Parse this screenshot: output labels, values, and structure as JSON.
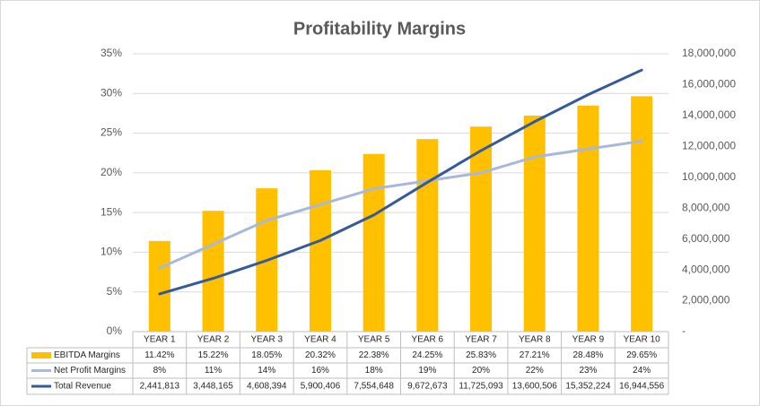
{
  "chart_data": {
    "type": "bar",
    "title": "Profitability Margins",
    "categories": [
      "YEAR 1",
      "YEAR 2",
      "YEAR 3",
      "YEAR 4",
      "YEAR 5",
      "YEAR 6",
      "YEAR 7",
      "YEAR 8",
      "YEAR 9",
      "YEAR 10"
    ],
    "series": [
      {
        "name": "EBITDA Margins",
        "type": "bar",
        "color": "#ffc000",
        "values": [
          11.42,
          15.22,
          18.05,
          20.32,
          22.38,
          24.25,
          25.83,
          27.21,
          28.48,
          29.65
        ],
        "value_labels": [
          "11.42%",
          "15.22%",
          "18.05%",
          "20.32%",
          "22.38%",
          "24.25%",
          "25.83%",
          "27.21%",
          "28.48%",
          "29.65%"
        ]
      },
      {
        "name": "Net Profit Margins",
        "type": "line",
        "color": "#a9b8d9",
        "values": [
          8,
          11,
          14,
          16,
          18,
          19,
          20,
          22,
          23,
          24
        ],
        "value_labels": [
          "8%",
          "11%",
          "14%",
          "16%",
          "18%",
          "19%",
          "20%",
          "22%",
          "23%",
          "24%"
        ]
      },
      {
        "name": "Total Revenue",
        "type": "line",
        "axis": "y2",
        "color": "#35599b",
        "values": [
          2441813,
          3448165,
          4608394,
          5900406,
          7554648,
          9672673,
          11725093,
          13600506,
          15352224,
          16944556
        ],
        "value_labels": [
          "2,441,813",
          "3,448,165",
          "4,608,394",
          "5,900,406",
          "7,554,648",
          "9,672,673",
          "11,725,093",
          "13,600,506",
          "15,352,224",
          "16,944,556"
        ]
      }
    ],
    "ylim": [
      0,
      35
    ],
    "yticks": [
      {
        "value": 0,
        "label": "0%"
      },
      {
        "value": 5,
        "label": "5%"
      },
      {
        "value": 10,
        "label": "10%"
      },
      {
        "value": 15,
        "label": "15%"
      },
      {
        "value": 20,
        "label": "20%"
      },
      {
        "value": 25,
        "label": "25%"
      },
      {
        "value": 30,
        "label": "30%"
      },
      {
        "value": 35,
        "label": "35%"
      }
    ],
    "y2lim": [
      0,
      18000000
    ],
    "y2ticks": [
      {
        "value": 0,
        "label": "-"
      },
      {
        "value": 2000000,
        "label": "2,000,000"
      },
      {
        "value": 4000000,
        "label": "4,000,000"
      },
      {
        "value": 6000000,
        "label": "6,000,000"
      },
      {
        "value": 8000000,
        "label": "8,000,000"
      },
      {
        "value": 10000000,
        "label": "10,000,000"
      },
      {
        "value": 12000000,
        "label": "12,000,000"
      },
      {
        "value": 14000000,
        "label": "14,000,000"
      },
      {
        "value": 16000000,
        "label": "16,000,000"
      },
      {
        "value": 18000000,
        "label": "18,000,000"
      }
    ],
    "grid": true
  }
}
